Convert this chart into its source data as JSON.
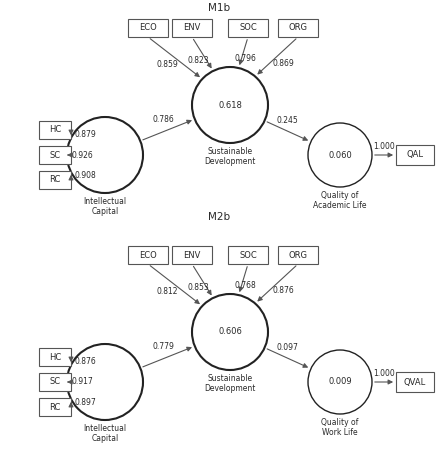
{
  "title_top": "M1b",
  "title_bottom": "M2b",
  "bg_color": "#ffffff",
  "text_color": "#2a2a2a",
  "box_edge_color": "#555555",
  "circle_edge_color": "#222222",
  "m1b": {
    "sd_label": "0.618",
    "sd_name": "Sustainable\nDevelopment",
    "ic_name": "Intellectual\nCapital",
    "qal_label": "0.060",
    "qal_name": "Quality of\nAcademic Life",
    "ic_to_sd": "0.786",
    "sd_to_qal": "0.245",
    "qal_to_box": "1.000",
    "qal_box": "QAL",
    "ic_loadings": [
      {
        "label": "HC",
        "weight": "0.879"
      },
      {
        "label": "SC",
        "weight": "0.926"
      },
      {
        "label": "RC",
        "weight": "0.908"
      }
    ],
    "sd_loadings": [
      {
        "label": "ECO",
        "weight": "0.859"
      },
      {
        "label": "ENV",
        "weight": "0.823"
      },
      {
        "label": "SOC",
        "weight": "0.796"
      },
      {
        "label": "ORG",
        "weight": "0.869"
      }
    ]
  },
  "m2b": {
    "sd_label": "0.606",
    "sd_name": "Sustainable\nDevelopment",
    "ic_name": "Intellectual\nCapital",
    "qal_label": "0.009",
    "qal_name": "Quality of\nWork Life",
    "ic_to_sd": "0.779",
    "sd_to_qal": "0.097",
    "qal_to_box": "1.000",
    "qal_box": "QVAL",
    "ic_loadings": [
      {
        "label": "HC",
        "weight": "0.876"
      },
      {
        "label": "SC",
        "weight": "0.917"
      },
      {
        "label": "RC",
        "weight": "0.897"
      }
    ],
    "sd_loadings": [
      {
        "label": "ECO",
        "weight": "0.812"
      },
      {
        "label": "ENV",
        "weight": "0.853"
      },
      {
        "label": "SOC",
        "weight": "0.768"
      },
      {
        "label": "ORG",
        "weight": "0.876"
      }
    ]
  }
}
